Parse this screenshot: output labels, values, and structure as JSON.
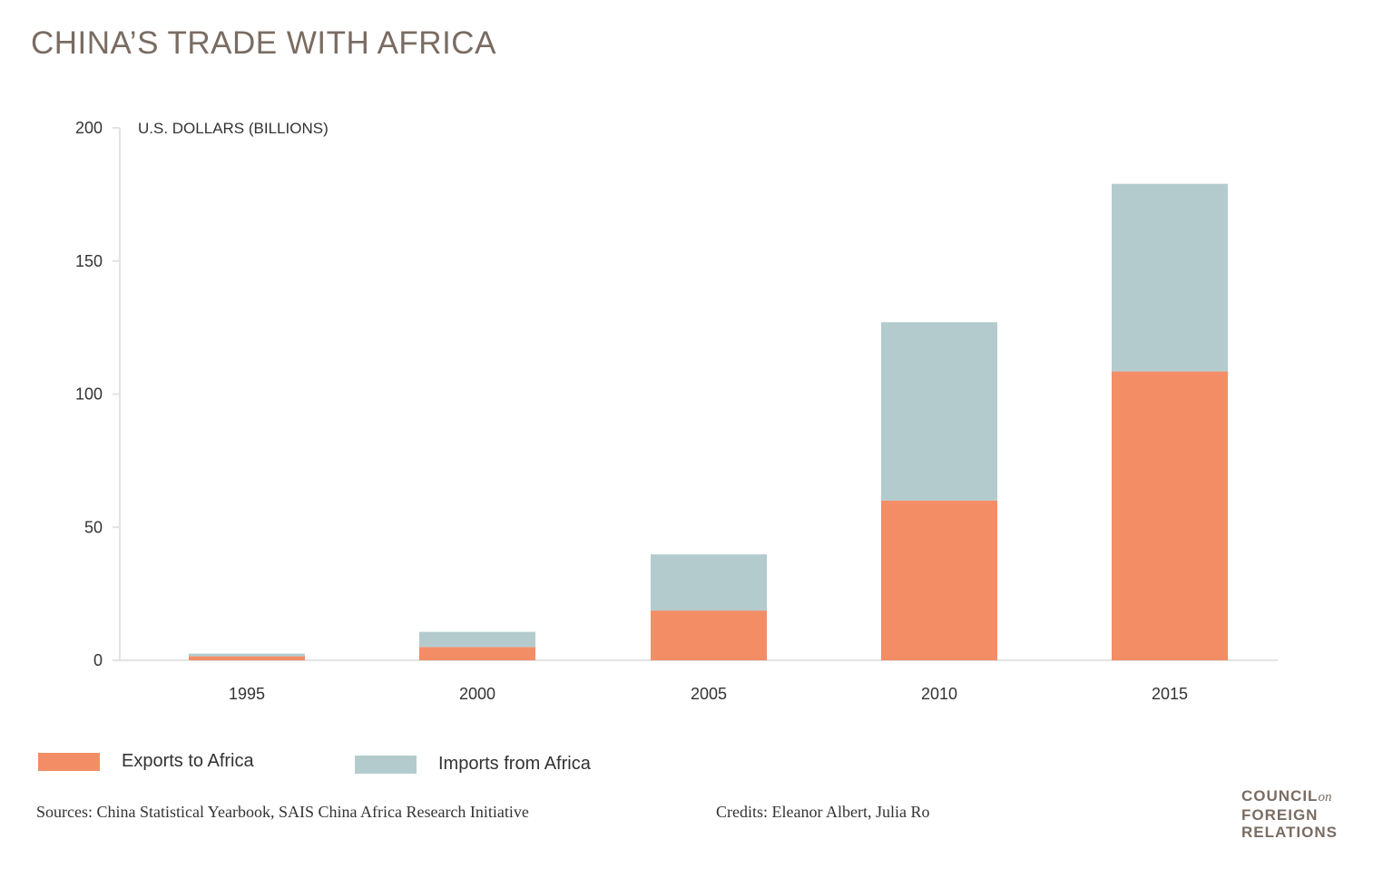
{
  "title": "CHINA’S TRADE WITH AFRICA",
  "chart_data": {
    "type": "bar",
    "stacked": true,
    "categories": [
      "1995",
      "2000",
      "2005",
      "2010",
      "2015"
    ],
    "series": [
      {
        "name": "Exports to Africa",
        "color": "#f38d66",
        "values": [
          1.5,
          5.0,
          18.7,
          60.0,
          108.5
        ]
      },
      {
        "name": "Imports from Africa",
        "color": "#b4cbcd",
        "values": [
          1.0,
          5.7,
          21.1,
          67.0,
          70.5
        ]
      }
    ],
    "ylabel": "U.S. DOLLARS (BILLIONS)",
    "ylim": [
      0,
      200
    ],
    "yticks": [
      0,
      50,
      100,
      150,
      200
    ],
    "legend": "bottom-left"
  },
  "legend": {
    "exports_label": "Exports to Africa",
    "imports_label": "Imports from Africa"
  },
  "footer": {
    "sources": "Sources: China Statistical Yearbook, SAIS China Africa Research Initiative",
    "credits": "Credits: Eleanor Albert, Julia Ro"
  },
  "logo": {
    "line1": "COUNCIL",
    "line1_suffix": "on",
    "line2": "FOREIGN",
    "line3": "RELATIONS"
  }
}
